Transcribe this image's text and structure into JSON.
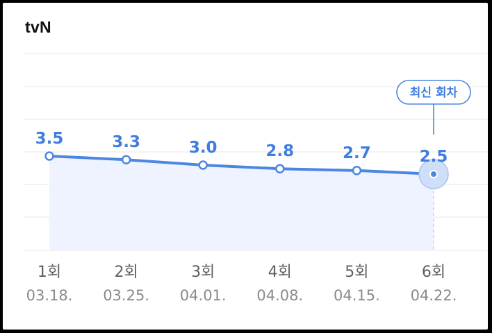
{
  "header": {
    "channel": "tvN"
  },
  "badge": {
    "label": "최신 회차"
  },
  "colors": {
    "accent": "#4c86e3",
    "fill": "#eef3ff",
    "grid": "#ececec"
  },
  "chart_data": {
    "type": "line",
    "title": "tvN",
    "categories": [
      "1회",
      "2회",
      "3회",
      "4회",
      "5회",
      "6회"
    ],
    "dates": [
      "03.18.",
      "03.25.",
      "04.01.",
      "04.08.",
      "04.15.",
      "04.22."
    ],
    "values": [
      3.5,
      3.3,
      3.0,
      2.8,
      2.7,
      2.5
    ],
    "value_labels": [
      "3.5",
      "3.3",
      "3.0",
      "2.8",
      "2.7",
      "2.5"
    ],
    "highlight_index": 5,
    "grid": true
  }
}
